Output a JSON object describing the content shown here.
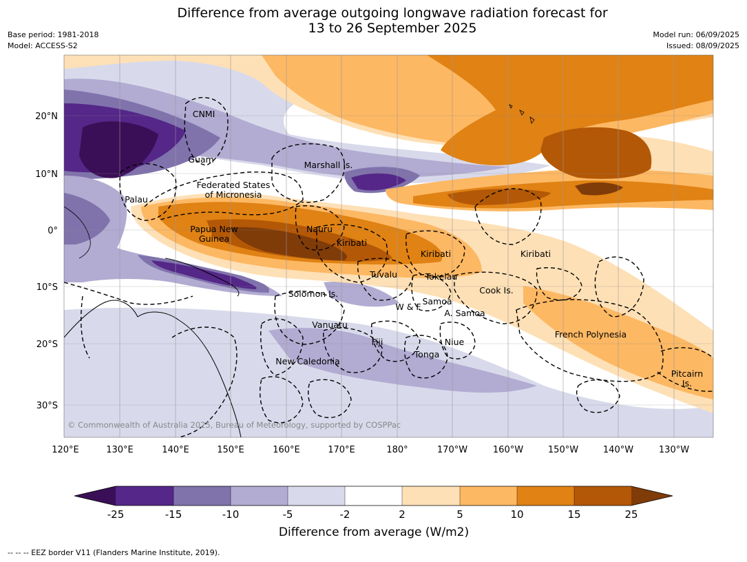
{
  "title_line1": "Difference from average outgoing longwave radiation forecast for",
  "title_line2": "13 to 26 September 2025",
  "base_period": "Base period: 1981-2018",
  "model": "Model: ACCESS-S2",
  "model_run": "Model run: 06/09/2025",
  "issued": "Issued: 08/09/2025",
  "lon_ticks": [
    "120°E",
    "130°E",
    "140°E",
    "150°E",
    "160°E",
    "170°E",
    "180°",
    "170°W",
    "160°W",
    "150°W",
    "140°W",
    "130°W"
  ],
  "lat_ticks": [
    "20°N",
    "10°N",
    "0°",
    "10°S",
    "20°S",
    "30°S"
  ],
  "places": {
    "cnmi": "CNMI",
    "guam": "Guam",
    "marshall": "Marshall Is.",
    "fsm1": "Federated States",
    "fsm2": "of Micronesia",
    "palau": "Palau",
    "png1": "Papua New",
    "png2": "Guinea",
    "nauru": "Nauru",
    "kiribati_w": "Kiribati",
    "kiribati_c": "Kiribati",
    "kiribati_e": "Kiribati",
    "tuvalu": "Tuvalu",
    "tokelau": "Tokelau",
    "cook": "Cook Is.",
    "solomon": "Solomon Is.",
    "samoa": "Samoa",
    "wf": "W & F",
    "asamoa": "A. Samoa",
    "vanuatu": "Vanuatu",
    "fiji": "Fiji",
    "niue": "Niue",
    "tonga": "Tonga",
    "frpoly": "French Polynesia",
    "pitcairn1": "Pitcairn",
    "pitcairn2": "Is.",
    "newcal": "New Caledonia"
  },
  "copyright": "© Commonwealth of Australia 2025, Bureau of Meteorology, supported by COSPPac",
  "colorbar": {
    "title": "Difference from average (W/m2)",
    "labels": [
      "-25",
      "-15",
      "-10",
      "-5",
      "-2",
      "2",
      "5",
      "10",
      "15",
      "25"
    ],
    "colors": [
      "#3b0f57",
      "#542788",
      "#8073ac",
      "#b2abd2",
      "#d8daeb",
      "#ffffff",
      "#fee0b6",
      "#fdb863",
      "#e08214",
      "#b35806",
      "#7f3b08"
    ]
  },
  "footer": "--  --  -- EEZ border V11 (Flanders Marine Institute, 2019)."
}
